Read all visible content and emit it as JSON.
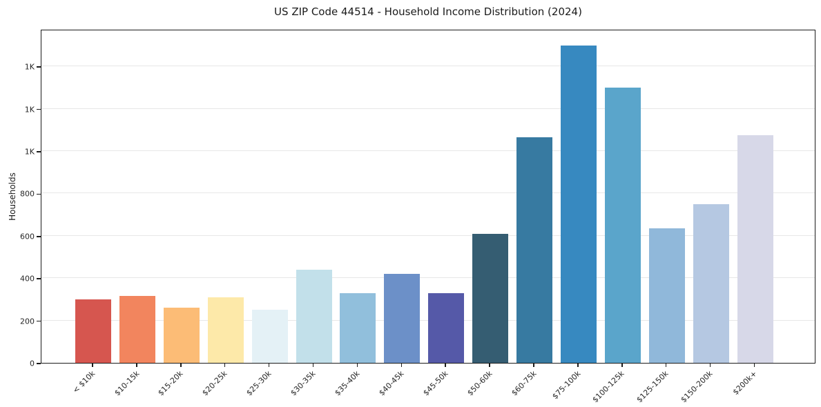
{
  "chart_data": {
    "type": "bar",
    "title": "US ZIP Code 44514 - Household Income Distribution (2024)",
    "xlabel": "",
    "ylabel": "Households",
    "categories": [
      "< $10k",
      "$10-15k",
      "$15-20k",
      "$20-25k",
      "$25-30k",
      "$30-35k",
      "$35-40k",
      "$40-45k",
      "$45-50k",
      "$50-60k",
      "$60-75k",
      "$75-100k",
      "$100-125k",
      "$125-150k",
      "$150-200k",
      "$200k+"
    ],
    "values": [
      300,
      315,
      260,
      310,
      250,
      440,
      330,
      420,
      330,
      610,
      1065,
      1500,
      1300,
      635,
      750,
      1075
    ],
    "bar_colors": [
      "#d6564f",
      "#f2855e",
      "#fcbc76",
      "#fde9a9",
      "#e4f1f6",
      "#c2e0ea",
      "#91bfdc",
      "#6c90c8",
      "#5559a8",
      "#355d72",
      "#377aa1",
      "#3789c0",
      "#5aa5cb",
      "#90b8da",
      "#b5c8e2",
      "#d7d8e8"
    ],
    "ylim": [
      0,
      1576
    ],
    "yticks": [
      {
        "value": 0,
        "label": "0"
      },
      {
        "value": 200,
        "label": "200"
      },
      {
        "value": 400,
        "label": "400"
      },
      {
        "value": 600,
        "label": "600"
      },
      {
        "value": 800,
        "label": "800"
      },
      {
        "value": 1000,
        "label": "1K"
      },
      {
        "value": 1200,
        "label": "1K"
      },
      {
        "value": 1400,
        "label": "1K"
      }
    ],
    "grid": "horizontal",
    "legend_position": "none",
    "colors": {
      "grid": "#e7e7e7",
      "spine": "#1a1a1a",
      "text": "#262626",
      "background": "#ffffff"
    }
  }
}
